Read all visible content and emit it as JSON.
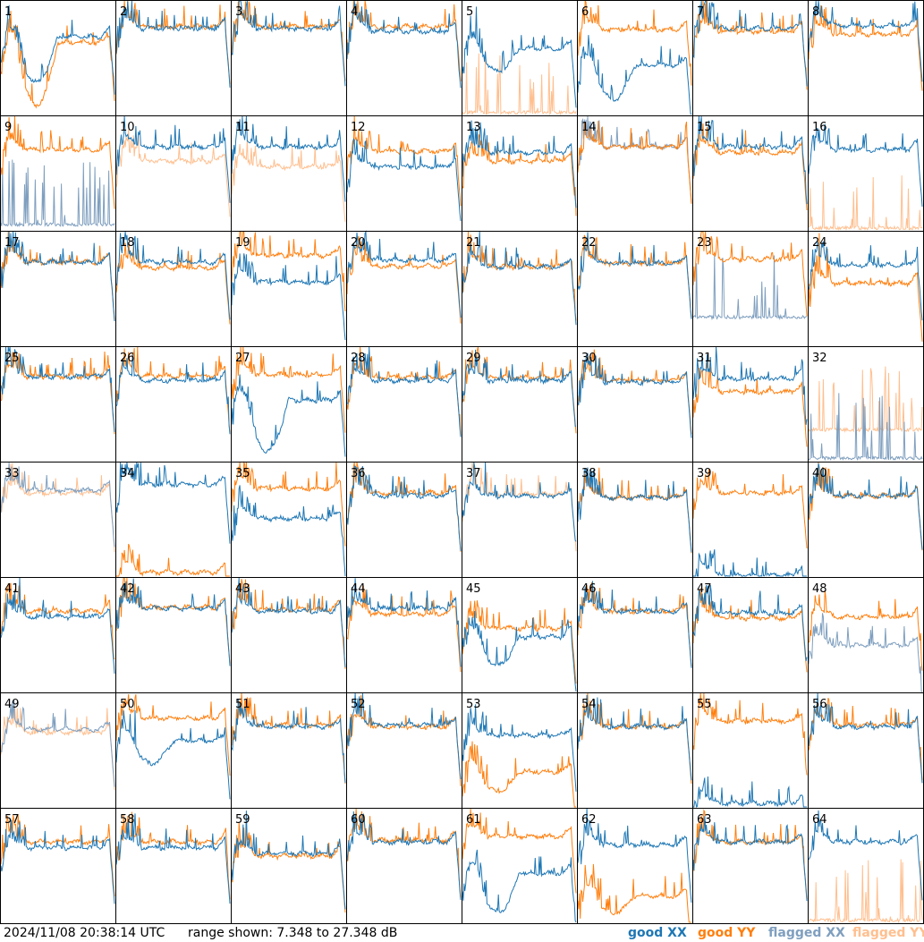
{
  "footer": {
    "timestamp": "2024/11/08 20:38:14 UTC",
    "range_text": "range shown: 7.348 to 27.348 dB"
  },
  "legend": [
    {
      "id": "good_xx",
      "label": "good XX",
      "color": "#1f77b4"
    },
    {
      "id": "good_yy",
      "label": "good YY",
      "color": "#ff7f0e"
    },
    {
      "id": "flagged_xx",
      "label": "flagged XX",
      "color": "#7f9fbf"
    },
    {
      "id": "flagged_yy",
      "label": "flagged YY",
      "color": "#ffbf8f"
    }
  ],
  "chart_data": {
    "type": "line",
    "title": "",
    "xlabel": "",
    "ylabel": "",
    "ylim": [
      7.348,
      27.348
    ],
    "grid": false,
    "layout": "small multiples, 8 columns x 8 rows",
    "panels": [
      {
        "n": 1,
        "xx": "good",
        "yy": "good",
        "xx_level": 21,
        "yy_level": 20,
        "xx_dip": 13,
        "yy_dip": 9
      },
      {
        "n": 2,
        "xx": "good",
        "yy": "good",
        "xx_level": 22.5,
        "yy_level": 22.8
      },
      {
        "n": 3,
        "xx": "good",
        "yy": "good",
        "xx_level": 22.5,
        "yy_level": 22.8
      },
      {
        "n": 4,
        "xx": "good",
        "yy": "good",
        "xx_level": 22,
        "yy_level": 22.8
      },
      {
        "n": 5,
        "xx": "good",
        "yy": "flagged",
        "xx_level": 19,
        "yy_level": 7.4,
        "xx_dip": 15
      },
      {
        "n": 6,
        "xx": "good",
        "yy": "good",
        "xx_level": 16,
        "yy_level": 22.3,
        "xx_dip": 10
      },
      {
        "n": 7,
        "xx": "good",
        "yy": "good",
        "xx_level": 22.5,
        "yy_level": 22
      },
      {
        "n": 8,
        "xx": "good",
        "yy": "good",
        "xx_level": 23,
        "yy_level": 21.5
      },
      {
        "n": 9,
        "xx": "flagged",
        "yy": "good",
        "xx_level": 8,
        "yy_level": 21.5
      },
      {
        "n": 10,
        "xx": "good",
        "yy": "flagged",
        "xx_level": 22,
        "yy_level": 19.5
      },
      {
        "n": 11,
        "xx": "good",
        "yy": "flagged",
        "xx_level": 22,
        "yy_level": 18.5
      },
      {
        "n": 12,
        "xx": "good",
        "yy": "good",
        "xx_level": 18.5,
        "yy_level": 21.2
      },
      {
        "n": 13,
        "xx": "good",
        "yy": "good",
        "xx_level": 21,
        "yy_level": 19.5
      },
      {
        "n": 14,
        "xx": "flagged",
        "yy": "good",
        "xx_level": 22,
        "yy_level": 22
      },
      {
        "n": 15,
        "xx": "good",
        "yy": "good",
        "xx_level": 22,
        "yy_level": 21
      },
      {
        "n": 16,
        "xx": "good",
        "yy": "flagged",
        "xx_level": 21.5,
        "yy_level": 7.4
      },
      {
        "n": 17,
        "xx": "good",
        "yy": "good",
        "xx_level": 22,
        "yy_level": 22
      },
      {
        "n": 18,
        "xx": "good",
        "yy": "good",
        "xx_level": 22,
        "yy_level": 21
      },
      {
        "n": 19,
        "xx": "good",
        "yy": "good",
        "xx_level": 18.5,
        "yy_level": 23.2
      },
      {
        "n": 20,
        "xx": "good",
        "yy": "good",
        "xx_level": 22.4,
        "yy_level": 21.3
      },
      {
        "n": 21,
        "xx": "good",
        "yy": "good",
        "xx_level": 21.2,
        "yy_level": 21.2
      },
      {
        "n": 22,
        "xx": "good",
        "yy": "good",
        "xx_level": 21.8,
        "yy_level": 21.8
      },
      {
        "n": 23,
        "xx": "flagged",
        "yy": "good",
        "xx_level": 12,
        "yy_level": 22.5
      },
      {
        "n": 24,
        "xx": "good",
        "yy": "good",
        "xx_level": 21.5,
        "yy_level": 18.3
      },
      {
        "n": 25,
        "xx": "good",
        "yy": "good",
        "xx_level": 22.2,
        "yy_level": 22.2
      },
      {
        "n": 26,
        "xx": "good",
        "yy": "good",
        "xx_level": 21.5,
        "yy_level": 22.3
      },
      {
        "n": 27,
        "xx": "good",
        "yy": "good",
        "xx_level": 18,
        "yy_level": 22.5,
        "xx_dip": 9
      },
      {
        "n": 28,
        "xx": "good",
        "yy": "good",
        "xx_level": 21.5,
        "yy_level": 22
      },
      {
        "n": 29,
        "xx": "good",
        "yy": "good",
        "xx_level": 21.5,
        "yy_level": 22
      },
      {
        "n": 30,
        "xx": "good",
        "yy": "good",
        "xx_level": 21.2,
        "yy_level": 21.5
      },
      {
        "n": 31,
        "xx": "good",
        "yy": "good",
        "xx_level": 21.8,
        "yy_level": 19.5
      },
      {
        "n": 32,
        "xx": "flagged",
        "yy": "flagged",
        "xx_level": 7.5,
        "yy_level": 12.5
      },
      {
        "n": 33,
        "xx": "flagged",
        "yy": "flagged",
        "xx_level": 22.5,
        "yy_level": 22
      },
      {
        "n": 34,
        "xx": "good",
        "yy": "good",
        "xx_level": 23.5,
        "yy_level": 8
      },
      {
        "n": 35,
        "xx": "good",
        "yy": "good",
        "xx_level": 17.5,
        "yy_level": 22.8
      },
      {
        "n": 36,
        "xx": "good",
        "yy": "good",
        "xx_level": 21.5,
        "yy_level": 22
      },
      {
        "n": 37,
        "xx": "good",
        "yy": "flagged",
        "xx_level": 21.5,
        "yy_level": 21.8
      },
      {
        "n": 38,
        "xx": "good",
        "yy": "good",
        "xx_level": 21.2,
        "yy_level": 21.2
      },
      {
        "n": 39,
        "xx": "good",
        "yy": "good",
        "xx_level": 7.5,
        "yy_level": 22
      },
      {
        "n": 40,
        "xx": "good",
        "yy": "good",
        "xx_level": 21.5,
        "yy_level": 21.5
      },
      {
        "n": 41,
        "xx": "good",
        "yy": "good",
        "xx_level": 20.5,
        "yy_level": 21.5
      },
      {
        "n": 42,
        "xx": "good",
        "yy": "good",
        "xx_level": 22,
        "yy_level": 22.2
      },
      {
        "n": 43,
        "xx": "good",
        "yy": "good",
        "xx_level": 21.5,
        "yy_level": 21.8
      },
      {
        "n": 44,
        "xx": "good",
        "yy": "good",
        "xx_level": 22,
        "yy_level": 21
      },
      {
        "n": 45,
        "xx": "good",
        "yy": "good",
        "xx_level": 17,
        "yy_level": 18.5,
        "xx_dip": 12
      },
      {
        "n": 46,
        "xx": "good",
        "yy": "good",
        "xx_level": 21.5,
        "yy_level": 21.5
      },
      {
        "n": 47,
        "xx": "good",
        "yy": "good",
        "xx_level": 21.2,
        "yy_level": 20.3
      },
      {
        "n": 48,
        "xx": "flagged",
        "yy": "good",
        "xx_level": 15.5,
        "yy_level": 20.5
      },
      {
        "n": 49,
        "xx": "flagged",
        "yy": "flagged",
        "xx_level": 21,
        "yy_level": 20.5
      },
      {
        "n": 50,
        "xx": "good",
        "yy": "good",
        "xx_level": 19,
        "yy_level": 23,
        "xx_dip": 15
      },
      {
        "n": 51,
        "xx": "good",
        "yy": "good",
        "xx_level": 21.5,
        "yy_level": 21.8
      },
      {
        "n": 52,
        "xx": "good",
        "yy": "good",
        "xx_level": 21.8,
        "yy_level": 21.5
      },
      {
        "n": 53,
        "xx": "good",
        "yy": "good",
        "xx_level": 20,
        "yy_level": 13.5,
        "yy_dip": 10
      },
      {
        "n": 54,
        "xx": "good",
        "yy": "good",
        "xx_level": 21.5,
        "yy_level": 21.5
      },
      {
        "n": 55,
        "xx": "good",
        "yy": "good",
        "xx_level": 8,
        "yy_level": 22.5
      },
      {
        "n": 56,
        "xx": "good",
        "yy": "good",
        "xx_level": 21.5,
        "yy_level": 21.8
      },
      {
        "n": 57,
        "xx": "good",
        "yy": "good",
        "xx_level": 20.5,
        "yy_level": 21.5
      },
      {
        "n": 58,
        "xx": "good",
        "yy": "good",
        "xx_level": 20.5,
        "yy_level": 21.5
      },
      {
        "n": 59,
        "xx": "good",
        "yy": "good",
        "xx_level": 19.5,
        "yy_level": 19
      },
      {
        "n": 60,
        "xx": "good",
        "yy": "good",
        "xx_level": 21.5,
        "yy_level": 21.8
      },
      {
        "n": 61,
        "xx": "good",
        "yy": "good",
        "xx_level": 16,
        "yy_level": 22.5,
        "xx_dip": 9
      },
      {
        "n": 62,
        "xx": "good",
        "yy": "good",
        "xx_level": 21,
        "yy_level": 12,
        "yy_dip": 9
      },
      {
        "n": 63,
        "xx": "good",
        "yy": "good",
        "xx_level": 21.5,
        "yy_level": 21.5
      },
      {
        "n": 64,
        "xx": "good",
        "yy": "flagged",
        "xx_level": 21.5,
        "yy_level": 7.4
      }
    ]
  }
}
